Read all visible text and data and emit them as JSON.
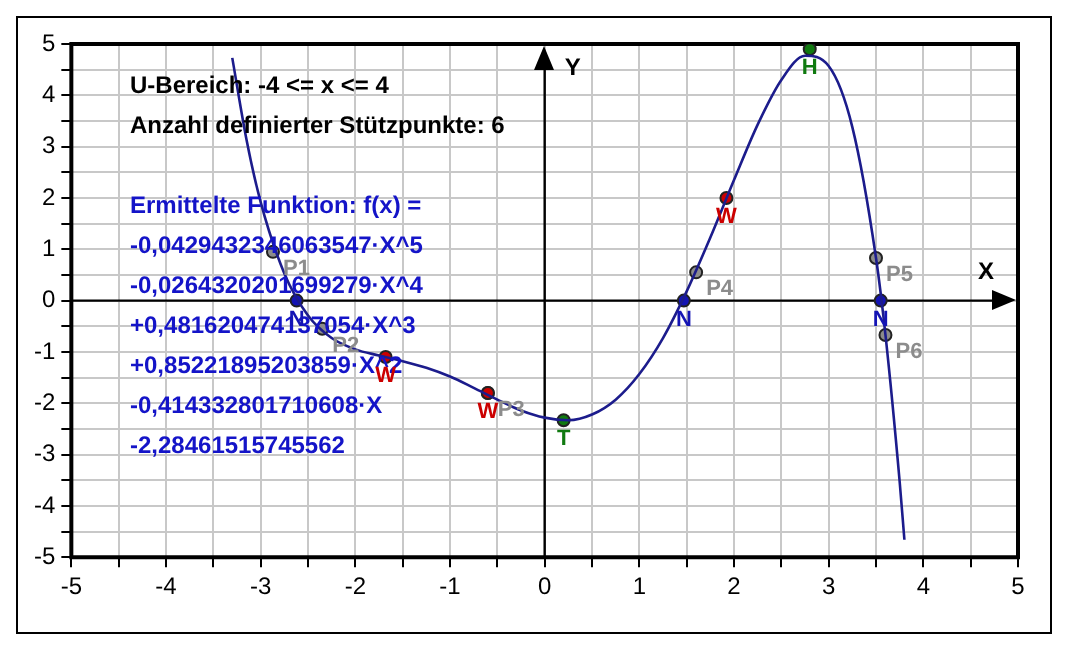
{
  "chart_data": {
    "type": "line",
    "xlabel": "X",
    "ylabel": "Y",
    "xlim": [
      -5,
      5
    ],
    "ylim": [
      -5,
      5
    ],
    "grid": true,
    "xticks": [
      -5,
      {
        "value": -4.5,
        "label": null
      },
      -4,
      {
        "value": -3.5,
        "label": null
      },
      -3,
      {
        "value": -2.5,
        "label": null
      },
      -2,
      {
        "value": -1.5,
        "label": null
      },
      -1,
      {
        "value": -0.5,
        "label": null
      },
      0,
      {
        "value": 0.5,
        "label": null
      },
      1,
      {
        "value": 1.5,
        "label": null
      },
      2,
      {
        "value": 2.5,
        "label": null
      },
      3,
      {
        "value": 3.5,
        "label": null
      },
      4,
      {
        "value": 4.5,
        "label": null
      },
      5
    ],
    "yticks": [
      -5,
      {
        "value": -4.5,
        "label": null
      },
      -4,
      {
        "value": -3.5,
        "label": null
      },
      -3,
      {
        "value": -2.5,
        "label": null
      },
      -2,
      {
        "value": -1.5,
        "label": null
      },
      -1,
      {
        "value": -0.5,
        "label": null
      },
      0,
      {
        "value": 0.5,
        "label": null
      },
      1,
      {
        "value": 1.5,
        "label": null
      },
      2,
      {
        "value": 2.5,
        "label": null
      },
      3,
      {
        "value": 3.5,
        "label": null
      },
      4,
      {
        "value": 4.5,
        "label": null
      },
      5
    ],
    "annotations": [
      "U-Bereich: -4 <= x <= 4",
      "Anzahl definierter Stützpunkte: 6",
      "Ermittelte Funktion: f(x) =",
      "-0,0429432346063547·X^5",
      "-0,0264320201699279·X^4",
      "+0,481620474137054·X^3",
      "+0,85221895203859·X^2",
      "-0,414332801710608·X",
      "-2,28461515745562"
    ],
    "series": [
      {
        "color": "#1c1c8c",
        "marker": "none",
        "line_style": "solid",
        "x": [
          -3.3,
          -3.15,
          -3,
          -2.75,
          -2.5,
          -2.25,
          -2,
          -1.75,
          -1.5,
          -1.25,
          -1,
          -0.75,
          -0.5,
          -0.25,
          0,
          0.25,
          0.5,
          0.75,
          1,
          1.25,
          1.5,
          1.75,
          2,
          2.25,
          2.5,
          2.75,
          3,
          3.25,
          3.5,
          3.6,
          3.75,
          3.8
        ],
        "values": [
          4.73,
          3.14,
          1.92,
          0.53,
          -0.29,
          -0.73,
          -0.95,
          -1.07,
          -1.18,
          -1.31,
          -1.48,
          -1.7,
          -1.93,
          -2.14,
          -2.28,
          -2.33,
          -2.22,
          -1.93,
          -1.43,
          -0.73,
          0.18,
          1.23,
          2.35,
          3.43,
          4.3,
          4.77,
          4.57,
          3.38,
          0.83,
          -0.67,
          -3.53,
          -4.66
        ]
      },
      {
        "type": "scatter",
        "color": "#1414b4",
        "marker": "circle",
        "x": [
          -2.62,
          1.47,
          3.55
        ],
        "values": [
          0,
          0,
          0
        ],
        "value_labels": [
          "N",
          "N",
          "N"
        ]
      },
      {
        "type": "scatter",
        "color": "#cc0000",
        "marker": "circle",
        "x": [
          -1.68,
          -0.6,
          1.92
        ],
        "values": [
          -1.1,
          -1.8,
          2.0
        ],
        "value_labels": [
          "W",
          "W",
          "W"
        ]
      },
      {
        "type": "scatter",
        "color": "#107a10",
        "marker": "circle",
        "x": [
          2.8,
          0.2
        ],
        "values": [
          4.9,
          -2.33
        ],
        "value_labels": [
          "H",
          "T"
        ]
      },
      {
        "type": "scatter",
        "color": "#8c8c8c",
        "marker": "circle",
        "x": [
          -2.87,
          -2.35,
          -0.6,
          1.6,
          3.5,
          3.6
        ],
        "values": [
          0.95,
          -0.55,
          -1.8,
          0.55,
          0.83,
          -0.67
        ],
        "value_labels": [
          "P1",
          "P2",
          "P3",
          "P4",
          "P5",
          "P6"
        ]
      }
    ]
  }
}
